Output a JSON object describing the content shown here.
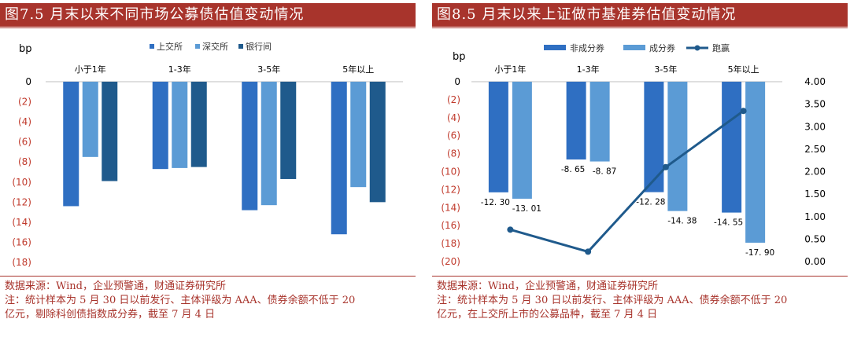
{
  "left": {
    "title": "图7.5 月末以来不同市场公募债估值变动情况",
    "source": "数据来源：Wind，企业预警通，财通证券研究所",
    "note_line1": "注：统计样本为 5 月 30 日以前发行、主体评级为 AAA、债券余额不低于 20",
    "note_line2": "亿元，剔除科创债指数成分券，截至 7 月 4 日"
  },
  "right": {
    "title": "图8.5 月末以来上证做市基准券估值变动情况",
    "source": "数据来源：Wind，企业预警通，财通证券研究所",
    "note_line1": "注：统计样本为 5 月 30 日以前发行、主体评级为 AAA、债券余额不低于 20",
    "note_line2": "亿元，在上交所上市的公募品种，截至 7 月 4 日"
  },
  "colors": {
    "title_bg": "#a8342c",
    "series_dark": "#2f6fc2",
    "series_light": "#5b9bd5",
    "series_navy": "#1f5a8c",
    "neg_tick": "#c0392b"
  },
  "chart_data": [
    {
      "type": "bar",
      "ylabel": "bp",
      "categories": [
        "小于1年",
        "1-3年",
        "3-5年",
        "5年以上"
      ],
      "ylim": [
        -18,
        0
      ],
      "y_ticks": [
        "0",
        "(2)",
        "(4)",
        "(6)",
        "(8)",
        "(10)",
        "(12)",
        "(14)",
        "(16)",
        "(18)"
      ],
      "legend_position": "top",
      "series": [
        {
          "name": "上交所",
          "values": [
            -12.4,
            -8.7,
            -12.8,
            -15.2
          ]
        },
        {
          "name": "深交所",
          "values": [
            -7.5,
            -8.6,
            -12.3,
            -10.5
          ]
        },
        {
          "name": "银行间",
          "values": [
            -9.9,
            -8.5,
            -9.7,
            -12.0
          ]
        }
      ]
    },
    {
      "type": "bar",
      "ylabel": "bp",
      "categories": [
        "小于1年",
        "1-3年",
        "3-5年",
        "5年以上"
      ],
      "ylim": [
        -20,
        0
      ],
      "y_ticks": [
        "0",
        "(2)",
        "(4)",
        "(6)",
        "(8)",
        "(10)",
        "(12)",
        "(14)",
        "(16)",
        "(18)",
        "(20)"
      ],
      "y2lim": [
        0,
        4
      ],
      "y2_ticks": [
        "4.00",
        "3.50",
        "3.00",
        "2.50",
        "2.00",
        "1.50",
        "1.00",
        "0.50",
        "0.00"
      ],
      "legend_position": "top",
      "series": [
        {
          "name": "非成分券",
          "values": [
            -12.3,
            -8.65,
            -12.28,
            -14.55
          ],
          "labels": [
            "-12. 30",
            "-8. 65",
            "-12. 28",
            "-14. 55"
          ]
        },
        {
          "name": "成分券",
          "values": [
            -13.01,
            -8.87,
            -14.38,
            -17.9
          ],
          "labels": [
            "-13. 01",
            "-8. 87",
            "-14. 38",
            "-17. 90"
          ]
        },
        {
          "name": "跑赢",
          "type": "line",
          "axis": "secondary",
          "values": [
            0.71,
            0.22,
            2.1,
            3.35
          ]
        }
      ]
    }
  ]
}
